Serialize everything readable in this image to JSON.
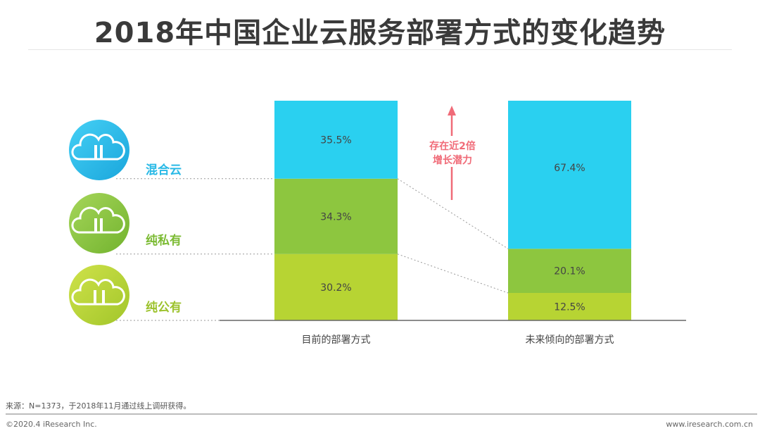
{
  "title": "2018年中国企业云服务部署方式的变化趋势",
  "annotation": {
    "line1": "存在近2倍",
    "line2": "增长潜力"
  },
  "legend": [
    {
      "label": "混合云",
      "color": "#29b9e6",
      "icon": "cloud-icon"
    },
    {
      "label": "纯私有",
      "color": "#8cc63f",
      "icon": "cloud-icon"
    },
    {
      "label": "纯公有",
      "color": "#b5d334",
      "icon": "cloud-icon"
    }
  ],
  "chart_data": {
    "type": "bar",
    "stacked": true,
    "categories": [
      "目前的部署方式",
      "未来倾向的部署方式"
    ],
    "series": [
      {
        "name": "纯公有",
        "values": [
          30.2,
          12.5
        ],
        "color": "#b7d433"
      },
      {
        "name": "纯私有",
        "values": [
          34.3,
          20.1
        ],
        "color": "#8dc63f"
      },
      {
        "name": "混合云",
        "values": [
          35.5,
          67.4
        ],
        "color": "#2ad0f0"
      }
    ],
    "value_suffix": "%",
    "ylim": [
      0,
      100
    ],
    "grid": false,
    "legend_position": "left"
  },
  "footer": {
    "source": "来源：N=1373，于2018年11月通过线上调研获得。",
    "copyright": "©2020.4 iResearch Inc.",
    "website": "www.iresearch.com.cn"
  }
}
